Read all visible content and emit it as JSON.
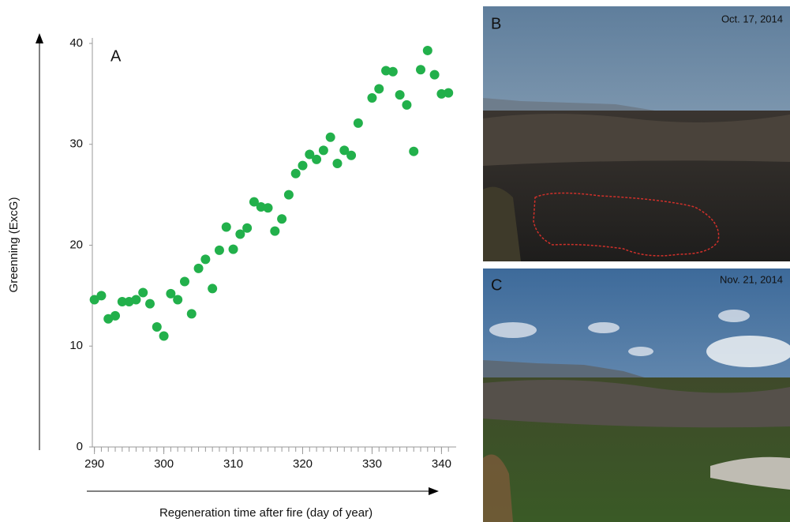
{
  "chart_data": {
    "type": "scatter",
    "panel_label": "A",
    "xlabel": "Regeneration time after fire (day of year)",
    "ylabel": "Greenning (ExcG)",
    "color": "#22b04b",
    "x": [
      290,
      291,
      292,
      293,
      294,
      295,
      296,
      297,
      298,
      299,
      300,
      301,
      302,
      303,
      304,
      305,
      306,
      307,
      308,
      309,
      310,
      311,
      312,
      313,
      314,
      315,
      316,
      317,
      318,
      319,
      320,
      321,
      322,
      323,
      324,
      325,
      326,
      327,
      328,
      330,
      331,
      332,
      333,
      334,
      335,
      336,
      337,
      338,
      339,
      340,
      341
    ],
    "values": [
      14.6,
      15.0,
      12.7,
      13.0,
      14.4,
      14.4,
      14.6,
      15.3,
      14.2,
      11.9,
      11.0,
      15.2,
      14.6,
      16.4,
      13.2,
      17.7,
      18.6,
      15.7,
      19.5,
      21.8,
      19.6,
      21.1,
      21.7,
      24.3,
      23.8,
      23.7,
      21.4,
      22.6,
      25.0,
      27.1,
      27.9,
      29.0,
      28.5,
      29.4,
      30.7,
      28.1,
      29.4,
      28.9,
      32.1,
      34.6,
      35.5,
      37.3,
      37.2,
      34.9,
      33.9,
      29.3,
      37.4,
      39.3,
      36.9,
      35.0,
      35.1
    ],
    "xlim": [
      289.7,
      342
    ],
    "ylim": [
      0,
      40
    ],
    "xticks": [
      290,
      300,
      310,
      320,
      330,
      340
    ],
    "xminorticks": [
      290,
      291,
      292,
      293,
      294,
      295,
      296,
      297,
      298,
      299,
      300,
      301,
      302,
      303,
      304,
      305,
      306,
      307,
      308,
      309,
      310,
      311,
      312,
      313,
      314,
      315,
      316,
      317,
      318,
      319,
      320,
      321,
      322,
      323,
      324,
      325,
      326,
      327,
      328,
      329,
      330,
      331,
      332,
      333,
      334,
      335,
      336,
      337,
      338,
      339,
      340,
      341
    ],
    "yticks": [
      0,
      10,
      20,
      30,
      40
    ]
  },
  "photos": [
    {
      "label": "B",
      "date": "Oct. 17, 2014"
    },
    {
      "label": "C",
      "date": "Nov. 21, 2014"
    }
  ]
}
